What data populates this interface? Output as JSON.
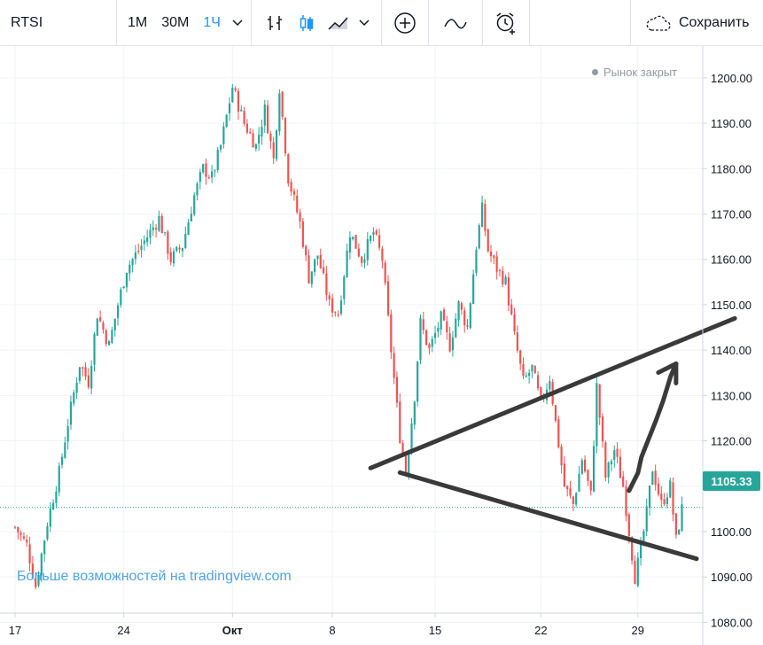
{
  "toolbar": {
    "symbol": "RTSI",
    "intervals": [
      "1М",
      "30М",
      "1Ч"
    ],
    "active_interval": "1Ч",
    "save_label": "Сохранить"
  },
  "status": {
    "market": "Рынок закрыт"
  },
  "watermark": "Больше возможностей на tradingview.com",
  "colors": {
    "up": "#26a69a",
    "down": "#ef5350",
    "accent": "#2196f3"
  },
  "chart_data": {
    "type": "candlestick",
    "symbol": "RTSI",
    "interval": "1Ч",
    "last_price": "1105.33",
    "y_ticks": [
      "1080.00",
      "1090.00",
      "1100.00",
      "1110.00",
      "1120.00",
      "1130.00",
      "1140.00",
      "1150.00",
      "1160.00",
      "1170.00",
      "1180.00",
      "1190.00",
      "1200.00"
    ],
    "ylim": [
      1075,
      1207
    ],
    "x_ticks": [
      {
        "label": "17",
        "index": 0
      },
      {
        "label": "24",
        "index": 37
      },
      {
        "label": "Окт",
        "index": 74
      },
      {
        "label": "8",
        "index": 108
      },
      {
        "label": "15",
        "index": 143
      },
      {
        "label": "22",
        "index": 179
      },
      {
        "label": "29",
        "index": 212
      }
    ],
    "path_closes": [
      [
        0,
        1101
      ],
      [
        4,
        1097
      ],
      [
        7,
        1088
      ],
      [
        11,
        1102
      ],
      [
        15,
        1113
      ],
      [
        18,
        1124
      ],
      [
        22,
        1137
      ],
      [
        25,
        1133
      ],
      [
        28,
        1148
      ],
      [
        32,
        1141
      ],
      [
        35,
        1150
      ],
      [
        38,
        1158
      ],
      [
        42,
        1162
      ],
      [
        46,
        1166
      ],
      [
        49,
        1169
      ],
      [
        53,
        1160
      ],
      [
        57,
        1163
      ],
      [
        61,
        1174
      ],
      [
        64,
        1180
      ],
      [
        67,
        1178
      ],
      [
        70,
        1185
      ],
      [
        74,
        1198
      ],
      [
        78,
        1190
      ],
      [
        82,
        1185
      ],
      [
        85,
        1193
      ],
      [
        88,
        1182
      ],
      [
        90,
        1198
      ],
      [
        93,
        1178
      ],
      [
        97,
        1168
      ],
      [
        100,
        1156
      ],
      [
        103,
        1161
      ],
      [
        107,
        1150
      ],
      [
        110,
        1148
      ],
      [
        114,
        1166
      ],
      [
        118,
        1160
      ],
      [
        122,
        1166
      ],
      [
        125,
        1160
      ],
      [
        128,
        1140
      ],
      [
        131,
        1121
      ],
      [
        133,
        1113
      ],
      [
        136,
        1130
      ],
      [
        138,
        1146
      ],
      [
        141,
        1140
      ],
      [
        145,
        1147
      ],
      [
        148,
        1141
      ],
      [
        151,
        1150
      ],
      [
        154,
        1145
      ],
      [
        157,
        1163
      ],
      [
        159,
        1171
      ],
      [
        161,
        1162
      ],
      [
        164,
        1158
      ],
      [
        167,
        1155
      ],
      [
        170,
        1143
      ],
      [
        173,
        1133
      ],
      [
        176,
        1136
      ],
      [
        179,
        1128
      ],
      [
        182,
        1134
      ],
      [
        184,
        1124
      ],
      [
        187,
        1110
      ],
      [
        190,
        1106
      ],
      [
        193,
        1116
      ],
      [
        196,
        1108
      ],
      [
        198,
        1132
      ],
      [
        201,
        1112
      ],
      [
        204,
        1118
      ],
      [
        207,
        1110
      ],
      [
        209,
        1100
      ],
      [
        211,
        1090
      ],
      [
        213,
        1096
      ],
      [
        215,
        1104
      ],
      [
        217,
        1114
      ],
      [
        220,
        1106
      ],
      [
        223,
        1110
      ],
      [
        225,
        1098
      ],
      [
        227,
        1105
      ]
    ],
    "candle_count": 228,
    "trendlines": [
      {
        "from": [
          121,
          1114
        ],
        "to": [
          245,
          1147
        ]
      },
      {
        "from": [
          131,
          1113
        ],
        "to": [
          232,
          1094
        ]
      }
    ],
    "arrow": {
      "from": [
        209,
        1109
      ],
      "to": [
        225,
        1137
      ]
    }
  }
}
